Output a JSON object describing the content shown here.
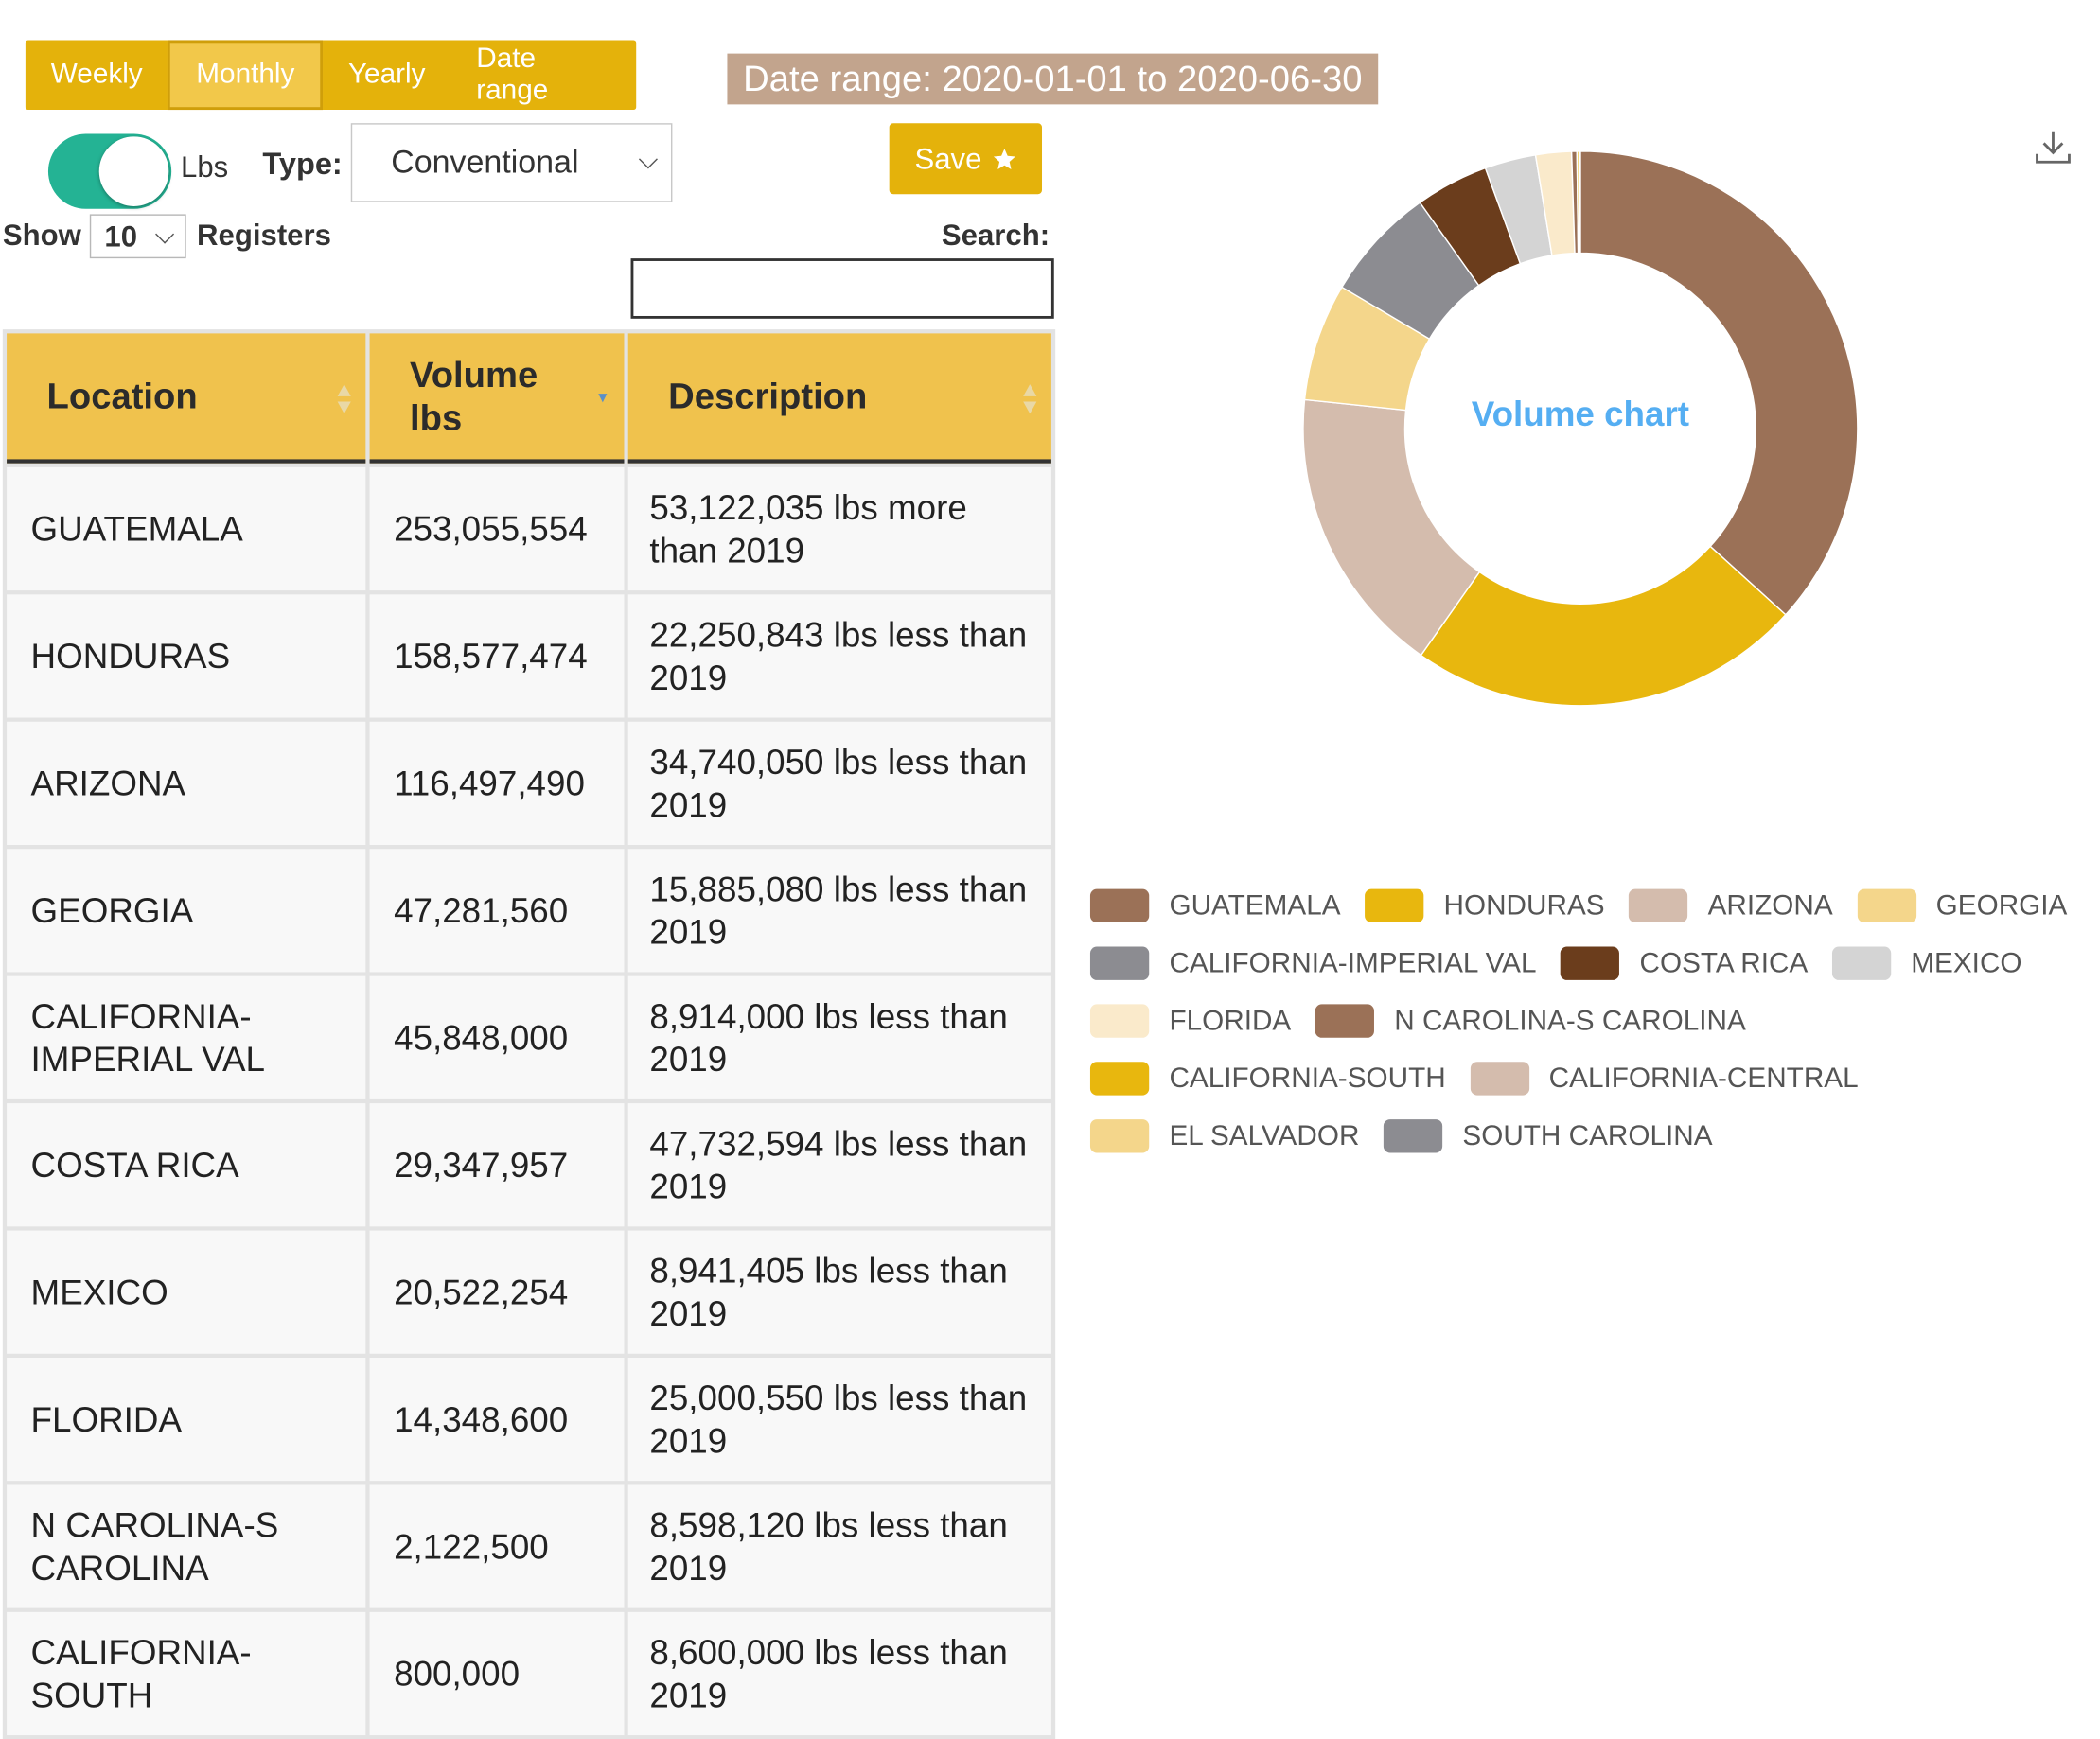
{
  "tabs": [
    {
      "label": "Weekly",
      "active": false
    },
    {
      "label": "Monthly",
      "active": true
    },
    {
      "label": "Yearly",
      "active": false
    },
    {
      "label": "Date range",
      "active": false
    }
  ],
  "date_range_label": "Date range: 2020-01-01 to 2020-06-30",
  "unit_toggle": {
    "label": "Lbs",
    "on": true
  },
  "type_filter": {
    "label": "Type:",
    "value": "Conventional"
  },
  "save_button": {
    "label": "Save"
  },
  "table_controls": {
    "show_label": "Show",
    "page_size": "10",
    "registers_label": "Registers",
    "search_label": "Search:",
    "search_value": ""
  },
  "table": {
    "columns": [
      {
        "label": "Location",
        "sort": "none"
      },
      {
        "label": "Volume lbs",
        "sort": "desc"
      },
      {
        "label": "Description",
        "sort": "none"
      }
    ],
    "rows": [
      {
        "location": "GUATEMALA",
        "volume": "253,055,554",
        "description": "53,122,035 lbs more than 2019"
      },
      {
        "location": "HONDURAS",
        "volume": "158,577,474",
        "description": "22,250,843 lbs less than 2019"
      },
      {
        "location": "ARIZONA",
        "volume": "116,497,490",
        "description": "34,740,050 lbs less than 2019"
      },
      {
        "location": "GEORGIA",
        "volume": "47,281,560",
        "description": "15,885,080 lbs less than 2019"
      },
      {
        "location": "CALIFORNIA-IMPERIAL VAL",
        "volume": "45,848,000",
        "description": "8,914,000 lbs less than 2019"
      },
      {
        "location": "COSTA RICA",
        "volume": "29,347,957",
        "description": "47,732,594 lbs less than 2019"
      },
      {
        "location": "MEXICO",
        "volume": "20,522,254",
        "description": "8,941,405 lbs less than 2019"
      },
      {
        "location": "FLORIDA",
        "volume": "14,348,600",
        "description": "25,000,550 lbs less than 2019"
      },
      {
        "location": "N CAROLINA-S CAROLINA",
        "volume": "2,122,500",
        "description": "8,598,120 lbs less than 2019"
      },
      {
        "location": "CALIFORNIA-SOUTH",
        "volume": "800,000",
        "description": "8,600,000 lbs less than 2019"
      }
    ]
  },
  "chart_data": {
    "type": "pie",
    "title": "Volume chart",
    "categories": [
      "GUATEMALA",
      "HONDURAS",
      "ARIZONA",
      "GEORGIA",
      "CALIFORNIA-IMPERIAL VAL",
      "COSTA RICA",
      "MEXICO",
      "FLORIDA",
      "N CAROLINA-S CAROLINA",
      "CALIFORNIA-SOUTH",
      "CALIFORNIA-CENTRAL",
      "EL SALVADOR",
      "SOUTH CAROLINA"
    ],
    "values": [
      253055554,
      158577474,
      116497490,
      47281560,
      45848000,
      29347957,
      20522254,
      14348600,
      2122500,
      800000,
      300000,
      150000,
      100000
    ],
    "colors": [
      "#9b7157",
      "#e8b70e",
      "#d4bcad",
      "#f4d68b",
      "#8c8c91",
      "#6b3d1c",
      "#d4d4d4",
      "#faeacb",
      "#9b7157",
      "#e8b70e",
      "#d4bcad",
      "#f4d68b",
      "#8c8c91"
    ],
    "legend_position": "bottom",
    "hole": "donut"
  },
  "download_icon": "download-icon",
  "save_icon": "star-icon"
}
